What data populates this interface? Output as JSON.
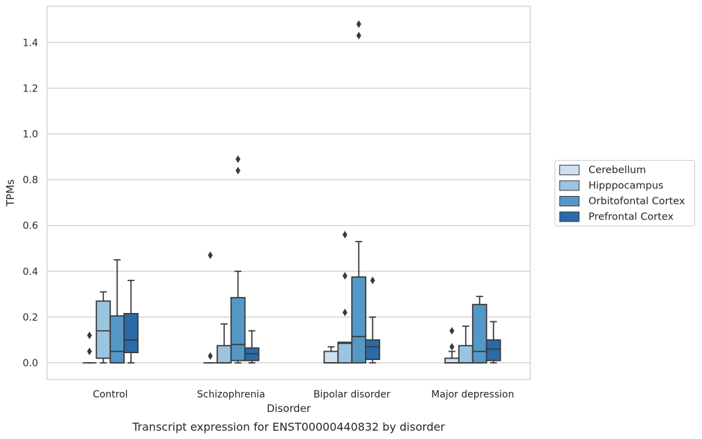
{
  "caption": "Transcript expression for ENST00000440832 by disorder",
  "chart_data": {
    "type": "box",
    "xlabel": "Disorder",
    "ylabel": "TPMs",
    "ylim": [
      -0.07,
      1.56
    ],
    "yticks": [
      "0.0",
      "0.2",
      "0.4",
      "0.6",
      "0.8",
      "1.0",
      "1.2",
      "1.4"
    ],
    "grid": "horizontal",
    "legend_position": "right",
    "categories": [
      "Control",
      "Schizophrenia",
      "Bipolar disorder",
      "Major depression"
    ],
    "series": [
      {
        "name": "Cerebellum",
        "color": "#cfe0f0",
        "boxes": [
          {
            "whislo": 0.0,
            "q1": 0.0,
            "med": 0.0,
            "q3": 0.0,
            "whishi": 0.0,
            "fliers": [
              0.12,
              0.05
            ]
          },
          {
            "whislo": 0.0,
            "q1": 0.0,
            "med": 0.0,
            "q3": 0.0,
            "whishi": 0.0,
            "fliers": [
              0.47,
              0.03
            ]
          },
          {
            "whislo": 0.0,
            "q1": 0.0,
            "med": 0.0,
            "q3": 0.05,
            "whishi": 0.07,
            "fliers": []
          },
          {
            "whislo": 0.0,
            "q1": 0.0,
            "med": 0.0,
            "q3": 0.02,
            "whishi": 0.05,
            "fliers": [
              0.14,
              0.07
            ]
          }
        ]
      },
      {
        "name": "Hipppocampus",
        "color": "#9ac4df",
        "boxes": [
          {
            "whislo": 0.0,
            "q1": 0.02,
            "med": 0.14,
            "q3": 0.27,
            "whishi": 0.31,
            "fliers": []
          },
          {
            "whislo": 0.0,
            "q1": 0.0,
            "med": 0.0,
            "q3": 0.075,
            "whishi": 0.17,
            "fliers": []
          },
          {
            "whislo": 0.0,
            "q1": 0.0,
            "med": 0.085,
            "q3": 0.09,
            "whishi": 0.09,
            "fliers": [
              0.22,
              0.38,
              0.56
            ]
          },
          {
            "whislo": 0.0,
            "q1": 0.0,
            "med": 0.0,
            "q3": 0.075,
            "whishi": 0.16,
            "fliers": []
          }
        ]
      },
      {
        "name": "Orbitofontal Cortex",
        "color": "#5598c8",
        "boxes": [
          {
            "whislo": 0.0,
            "q1": 0.0,
            "med": 0.05,
            "q3": 0.205,
            "whishi": 0.45,
            "fliers": []
          },
          {
            "whislo": 0.0,
            "q1": 0.01,
            "med": 0.08,
            "q3": 0.285,
            "whishi": 0.4,
            "fliers": [
              0.84,
              0.89
            ]
          },
          {
            "whislo": 0.0,
            "q1": 0.0,
            "med": 0.115,
            "q3": 0.375,
            "whishi": 0.53,
            "fliers": [
              1.43,
              1.48
            ]
          },
          {
            "whislo": 0.0,
            "q1": 0.0,
            "med": 0.05,
            "q3": 0.255,
            "whishi": 0.29,
            "fliers": []
          }
        ]
      },
      {
        "name": "Prefrontal Cortex",
        "color": "#2b6aa8",
        "boxes": [
          {
            "whislo": 0.0,
            "q1": 0.045,
            "med": 0.1,
            "q3": 0.215,
            "whishi": 0.36,
            "fliers": []
          },
          {
            "whislo": 0.0,
            "q1": 0.01,
            "med": 0.04,
            "q3": 0.065,
            "whishi": 0.14,
            "fliers": []
          },
          {
            "whislo": 0.0,
            "q1": 0.015,
            "med": 0.07,
            "q3": 0.1,
            "whishi": 0.2,
            "fliers": [
              0.36
            ]
          },
          {
            "whislo": 0.0,
            "q1": 0.01,
            "med": 0.06,
            "q3": 0.1,
            "whishi": 0.18,
            "fliers": []
          }
        ]
      }
    ]
  }
}
